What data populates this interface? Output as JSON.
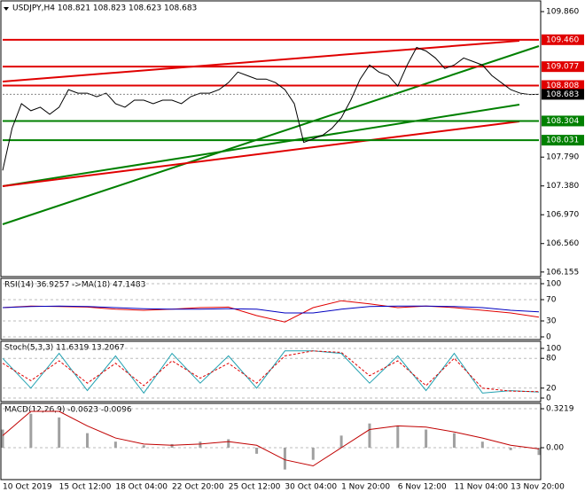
{
  "chart_data": [
    {
      "type": "line",
      "title": "USDJPY,H4  108.821 108.823 108.623 108.683",
      "categories": [
        "10 Oct 2019",
        null,
        null,
        null,
        null,
        null,
        "15 Oct 12:00",
        null,
        null,
        null,
        null,
        null,
        "18 Oct 04:00",
        null,
        null,
        null,
        null,
        null,
        "22 Oct 20:00",
        null,
        null,
        null,
        null,
        null,
        "25 Oct 12:00",
        null,
        null,
        null,
        null,
        null,
        "30 Oct 04:00",
        null,
        null,
        null,
        null,
        null,
        "1 Nov 20:00",
        null,
        null,
        null,
        null,
        null,
        "6 Nov 12:00",
        null,
        null,
        null,
        null,
        null,
        "11 Nov 04:00",
        null,
        null,
        null,
        null,
        null,
        "13 Nov 20:00",
        null,
        null,
        null
      ],
      "values": [
        107.6,
        108.2,
        108.55,
        108.45,
        108.5,
        108.4,
        108.5,
        108.75,
        108.7,
        108.7,
        108.65,
        108.7,
        108.55,
        108.5,
        108.6,
        108.6,
        108.55,
        108.6,
        108.6,
        108.55,
        108.65,
        108.7,
        108.7,
        108.75,
        108.85,
        109.0,
        108.95,
        108.9,
        108.9,
        108.85,
        108.75,
        108.55,
        108.0,
        108.05,
        108.1,
        108.2,
        108.35,
        108.6,
        108.9,
        109.1,
        109.0,
        108.95,
        108.8,
        109.1,
        109.35,
        109.3,
        109.2,
        109.05,
        109.1,
        109.2,
        109.15,
        109.1,
        108.95,
        108.85,
        108.75,
        108.7,
        108.68,
        108.683
      ],
      "color": "#000000",
      "ylim": [
        106.09,
        110.0
      ],
      "yticks": [
        {
          "value": 109.86,
          "label": "109.860"
        },
        {
          "value": 107.79,
          "label": "107.790"
        },
        {
          "value": 107.38,
          "label": "107.380"
        },
        {
          "value": 106.97,
          "label": "106.970"
        },
        {
          "value": 106.56,
          "label": "106.560"
        },
        106.155
      ],
      "levels": [
        {
          "value": 109.46,
          "label": "109.460",
          "color": "#e00000"
        },
        {
          "value": 109.077,
          "label": "109.077",
          "color": "#e00000"
        },
        {
          "value": 108.808,
          "label": "108.808",
          "color": "#e00000"
        },
        {
          "value": 108.304,
          "label": "108.304",
          "color": "#008000"
        },
        {
          "value": 108.031,
          "label": "108.031",
          "color": "#008000"
        }
      ],
      "current": 108.683
    },
    {
      "type": "line",
      "title": "RSI(14) 36.9257 ->MA(18) 47.1483",
      "ylim": [
        0,
        100
      ],
      "yticks": [
        0,
        30,
        70,
        100
      ],
      "series": [
        {
          "color": "#e00000",
          "values": [
            55,
            58,
            57,
            56,
            52,
            50,
            52,
            55,
            56,
            40,
            28,
            55,
            68,
            62,
            55,
            58,
            55,
            50,
            45,
            37
          ]
        },
        {
          "color": "#0000c0",
          "values": [
            55,
            57,
            58,
            57,
            55,
            53,
            52,
            52,
            53,
            52,
            45,
            45,
            52,
            57,
            58,
            58,
            57,
            55,
            50,
            47
          ]
        }
      ]
    },
    {
      "type": "line",
      "title": "Stoch(5,3,3) 11.6319 13.2067",
      "ylim": [
        0,
        100
      ],
      "yticks": [
        0,
        20,
        80,
        100
      ],
      "series": [
        {
          "color": "#20a0b0",
          "values": [
            80,
            20,
            90,
            15,
            85,
            10,
            90,
            30,
            85,
            20,
            95,
            95,
            90,
            30,
            85,
            15,
            90,
            10,
            15,
            12
          ]
        },
        {
          "color": "#e00000",
          "dash": true,
          "values": [
            70,
            35,
            75,
            30,
            70,
            25,
            75,
            40,
            70,
            30,
            85,
            95,
            92,
            45,
            75,
            25,
            80,
            20,
            14,
            13
          ]
        }
      ]
    },
    {
      "type": "macd",
      "title": "MACD(12,26,9) -0.0623 -0.0096",
      "ylim": [
        -0.256,
        0.366
      ],
      "yticks": [
        {
          "value": 0,
          "label": "0.00"
        },
        0.3219
      ],
      "series": [
        {
          "color": "#a0a0a0",
          "bars": true,
          "values": [
            0.15,
            0.28,
            0.25,
            0.12,
            0.05,
            0.02,
            0.03,
            0.05,
            0.07,
            -0.05,
            -0.18,
            -0.1,
            0.1,
            0.2,
            0.18,
            0.15,
            0.12,
            0.05,
            -0.02,
            -0.06
          ]
        },
        {
          "color": "#c00000",
          "values": [
            0.1,
            0.3,
            0.3,
            0.18,
            0.08,
            0.03,
            0.02,
            0.03,
            0.05,
            0.02,
            -0.1,
            -0.15,
            0.0,
            0.15,
            0.18,
            0.17,
            0.13,
            0.08,
            0.02,
            -0.01
          ]
        }
      ]
    }
  ]
}
